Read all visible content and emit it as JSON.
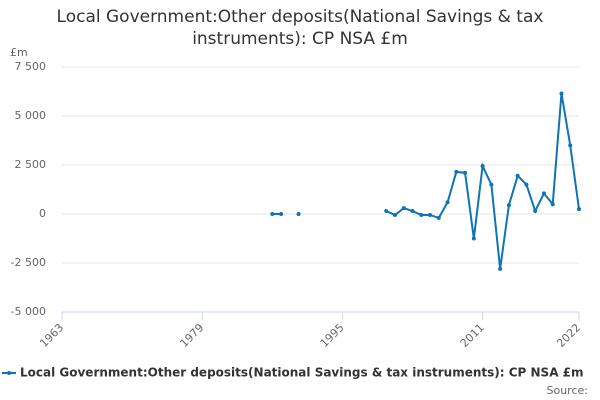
{
  "chart_data": {
    "type": "line",
    "title": "Local Government:Other deposits(National Savings & tax instruments): CP NSA £m",
    "y_axis_label": "£m",
    "x": [
      1987,
      1988,
      1989,
      1990,
      1991,
      1992,
      1993,
      1994,
      1995,
      1996,
      1997,
      1998,
      1999,
      2000,
      2001,
      2002,
      2003,
      2004,
      2005,
      2006,
      2007,
      2008,
      2009,
      2010,
      2011,
      2012,
      2013,
      2014,
      2015,
      2016,
      2017,
      2018,
      2019,
      2020,
      2021,
      2022
    ],
    "series": [
      {
        "name": "Local Government:Other deposits(National Savings & tax instruments): CP NSA £m",
        "color": "#0e74b3",
        "values": [
          0,
          0,
          null,
          0,
          null,
          null,
          null,
          null,
          null,
          null,
          null,
          null,
          null,
          150,
          -50,
          300,
          150,
          -50,
          -50,
          -200,
          600,
          2150,
          2100,
          -1250,
          2450,
          1500,
          -2800,
          450,
          1950,
          1500,
          150,
          1050,
          500,
          6150,
          3500,
          250
        ]
      }
    ],
    "xlim": [
      1963,
      2022
    ],
    "xticks": [
      1963,
      1979,
      1995,
      2011,
      2022
    ],
    "ylim": [
      -5000,
      7500
    ],
    "yticks": [
      {
        "value": -5000,
        "label": "-5 000"
      },
      {
        "value": -2500,
        "label": "-2 500"
      },
      0,
      {
        "value": 2500,
        "label": "2 500"
      },
      {
        "value": 5000,
        "label": "5 000"
      },
      {
        "value": 7500,
        "label": "7 500"
      }
    ],
    "grid": true,
    "legend": "bottom",
    "source": "Source:"
  }
}
